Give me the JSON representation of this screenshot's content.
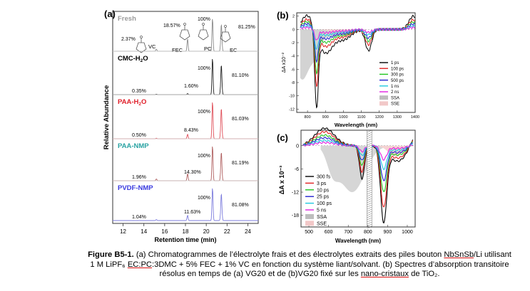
{
  "panel_a": {
    "panel_label": "(a)",
    "ylabel": "Relative Abundance",
    "xlabel": "Retention time (min)",
    "xticks": [
      "12",
      "14",
      "16",
      "18",
      "20",
      "22",
      "24"
    ],
    "rows": [
      {
        "name": "Fresh",
        "name_color": "#9a9a9a",
        "color": "#8a8a8a",
        "pct_vc": "2.37%",
        "pct_fec": "18.57%",
        "pct_pc": "100%",
        "pct_ec": "81.25%",
        "lbl_vc": "VC",
        "lbl_fec": "FEC",
        "lbl_pc": "PC",
        "lbl_ec": "EC"
      },
      {
        "name": "CMC-H2O",
        "name_color": "#000000",
        "color": "#202020",
        "pct_vc": "0.35%",
        "pct_fec": "1.60%",
        "pct_pc": "100%",
        "pct_ec": "81.10%"
      },
      {
        "name": "PAA-H2O",
        "name_color": "#e0202b",
        "color": "#e0505a",
        "pct_vc": "0.50%",
        "pct_fec": "8.43%",
        "pct_pc": "100%",
        "pct_ec": "81.03%"
      },
      {
        "name": "PAA-NMP",
        "name_color": "#2aa3a3",
        "color": "#b06060",
        "pct_vc": "1.96%",
        "pct_fec": "14.30%",
        "pct_pc": "100%",
        "pct_ec": "81.19%"
      },
      {
        "name": "PVDF-NMP",
        "name_color": "#3a3adf",
        "color": "#7d7ddd",
        "pct_vc": "1.04%",
        "pct_fec": "11.63%",
        "pct_pc": "100%",
        "pct_ec": "81.08%"
      }
    ]
  },
  "panel_b": {
    "panel_label": "(b)",
    "ylabel": "ΔA x10⁻²",
    "xlabel": "Wavelength (nm)",
    "xticks": [
      "800",
      "900",
      "1000",
      "1100",
      "1200",
      "1300",
      "1400"
    ],
    "yticks": [
      "2",
      "0",
      "-2",
      "-4",
      "-6",
      "-8",
      "-10",
      "-12"
    ],
    "legend": [
      {
        "label": "1 ps",
        "color": "#000000"
      },
      {
        "label": "100 ps",
        "color": "#e02020"
      },
      {
        "label": "300 ps",
        "color": "#1fc41f"
      },
      {
        "label": "500 ps",
        "color": "#2020d0"
      },
      {
        "label": "1 ns",
        "color": "#20c8e0"
      },
      {
        "label": "2 ns",
        "color": "#e020e0"
      },
      {
        "label": "SSA",
        "color": "#bdbdbd"
      },
      {
        "label": "SSE",
        "color": "#f2c8c8"
      }
    ]
  },
  "panel_c": {
    "panel_label": "(c)",
    "ylabel": "ΔA x 10⁻³",
    "xlabel": "Wavelength (nm)",
    "xticks": [
      "500",
      "600",
      "700",
      "800",
      "900",
      "1000"
    ],
    "yticks": [
      "0",
      "-6",
      "-12",
      "-18"
    ],
    "legend": [
      {
        "label": "300 fs",
        "color": "#000000"
      },
      {
        "label": "3 ps",
        "color": "#e02020"
      },
      {
        "label": "10 ps",
        "color": "#1fc41f"
      },
      {
        "label": "25 ps",
        "color": "#2020d0"
      },
      {
        "label": "100 ps",
        "color": "#20c8e0"
      },
      {
        "label": "5 ns",
        "color": "#e020e0"
      },
      {
        "label": "SSA",
        "color": "#bdbdbd"
      },
      {
        "label": "SSE",
        "color": "#f2c8c8"
      }
    ]
  },
  "caption": {
    "label": "Figure B5-1.",
    "p1": " (a) Chromatogrammes de l’électrolyte frais et des électrolytes extraits des piles bouton ",
    "u1": "NbSnSb",
    "p2": "/Li utilisant 1 M LiPF₆ ",
    "u2": "EC:PC",
    "p3": ":3DMC + 5% FEC + 1% VC en fonction du système liant/solvant. (b) Spectres d’absorption transitoire résolus en temps de (a) VG20 et de (b)VG20 fixé sur les ",
    "u3": "nano-cristaux",
    "p4": " de TiO₂."
  }
}
